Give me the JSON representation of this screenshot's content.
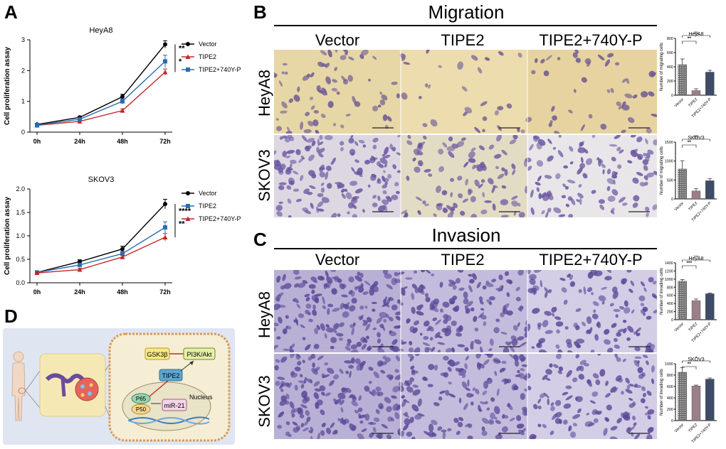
{
  "panels": {
    "a": "A",
    "b": "B",
    "c": "C",
    "d": "D"
  },
  "migration_title": "Migration",
  "invasion_title": "Invasion",
  "conditions": [
    "Vector",
    "TIPE2",
    "TIPE2+740Y-P"
  ],
  "cell_lines": [
    "HeyA8",
    "SKOV3"
  ],
  "diagram": {
    "labels": [
      "GSK3β",
      "PI3K/Akt",
      "TIPE2",
      "P65",
      "P50",
      "miR-21",
      "Nucleus"
    ],
    "colors": {
      "bg": "#dfe6f2",
      "cell": "#f5eed4",
      "cellBorder": "#d79a5a",
      "tipe2": "#5ea6cf",
      "p65": "#9bd3b4",
      "p50": "#f3d58f",
      "mir": "#f3d6e8",
      "gsk": "#f6ea86",
      "pi3k": "#e6f0a6"
    }
  },
  "chart_data": [
    {
      "id": "prolif-heya8",
      "type": "line",
      "title": "HeyA8",
      "xlabel": "",
      "ylabel": "Cell proliferation assay",
      "categories": [
        "0h",
        "24h",
        "48h",
        "72h"
      ],
      "ylim": [
        0,
        3
      ],
      "yticks": [
        0,
        1,
        2,
        3
      ],
      "series": [
        {
          "name": "Vector",
          "color": "#000000",
          "marker": "circle",
          "values": [
            0.25,
            0.48,
            1.15,
            2.85
          ],
          "err": [
            0.03,
            0.04,
            0.08,
            0.12
          ]
        },
        {
          "name": "TIPE2",
          "color": "#c0282a",
          "marker": "triangle",
          "values": [
            0.22,
            0.35,
            0.7,
            1.95
          ],
          "err": [
            0.03,
            0.04,
            0.06,
            0.1
          ]
        },
        {
          "name": "TIPE2+740Y-P",
          "color": "#2b6cb0",
          "marker": "square",
          "values": [
            0.23,
            0.42,
            1.0,
            2.3
          ],
          "err": [
            0.03,
            0.04,
            0.08,
            0.2
          ]
        }
      ],
      "significance": [
        "**",
        "*"
      ]
    },
    {
      "id": "prolif-skov3",
      "type": "line",
      "title": "SKOV3",
      "xlabel": "",
      "ylabel": "Cell proliferation assay",
      "categories": [
        "0h",
        "24h",
        "48h",
        "72h"
      ],
      "ylim": [
        0,
        2.0
      ],
      "yticks": [
        0.0,
        0.5,
        1.0,
        1.5,
        2.0
      ],
      "series": [
        {
          "name": "Vector",
          "color": "#000000",
          "marker": "circle",
          "values": [
            0.22,
            0.45,
            0.72,
            1.68
          ],
          "err": [
            0.02,
            0.04,
            0.06,
            0.1
          ]
        },
        {
          "name": "TIPE2",
          "color": "#2b6cb0",
          "marker": "square",
          "values": [
            0.22,
            0.38,
            0.62,
            1.18
          ],
          "err": [
            0.02,
            0.04,
            0.05,
            0.12
          ]
        },
        {
          "name": "TIPE2+740Y-P",
          "color": "#c0282a",
          "marker": "triangle",
          "values": [
            0.21,
            0.28,
            0.55,
            0.97
          ],
          "err": [
            0.02,
            0.03,
            0.04,
            0.08
          ]
        }
      ],
      "significance": [
        "****",
        "**"
      ]
    },
    {
      "id": "mig-heya8",
      "type": "bar",
      "title": "HeyA8",
      "ylabel": "Number of migrating cells",
      "categories": [
        "Vector",
        "TIPE2",
        "TIPE2+740Y-P"
      ],
      "values": [
        430,
        65,
        325
      ],
      "err": [
        80,
        25,
        25
      ],
      "ylim": [
        0,
        800
      ],
      "yticks": [
        0,
        200,
        400,
        600,
        800
      ],
      "significance": [
        "**",
        "ns"
      ]
    },
    {
      "id": "mig-skov3",
      "type": "bar",
      "title": "SKOV3",
      "ylabel": "Number of migrating cells",
      "categories": [
        "Vector",
        "TIPE2",
        "TIPE2+740Y-P"
      ],
      "values": [
        790,
        210,
        480
      ],
      "err": [
        220,
        60,
        60
      ],
      "ylim": [
        0,
        1500
      ],
      "yticks": [
        0,
        500,
        1000,
        1500
      ],
      "significance": [
        "**",
        "ns"
      ]
    },
    {
      "id": "inv-heya8",
      "type": "bar",
      "title": "HeyA8",
      "ylabel": "Number of invading cells",
      "categories": [
        "Vector",
        "TIPE2",
        "TIPE2+740Y-P"
      ],
      "values": [
        950,
        470,
        640
      ],
      "err": [
        40,
        40,
        15
      ],
      "ylim": [
        0,
        1400
      ],
      "yticks": [
        0,
        200,
        400,
        600,
        800,
        1000,
        1200,
        1400
      ],
      "significance": [
        "***",
        "***"
      ]
    },
    {
      "id": "inv-skov3",
      "type": "bar",
      "title": "SKOV3",
      "ylabel": "Number of invading cells",
      "categories": [
        "Vector",
        "TIPE2",
        "TIPE2+740Y-P"
      ],
      "values": [
        850,
        610,
        730
      ],
      "err": [
        80,
        15,
        20
      ],
      "ylim": [
        0,
        1000
      ],
      "yticks": [
        0,
        200,
        400,
        600,
        800,
        1000
      ],
      "significance": [
        "**",
        "*"
      ]
    }
  ]
}
